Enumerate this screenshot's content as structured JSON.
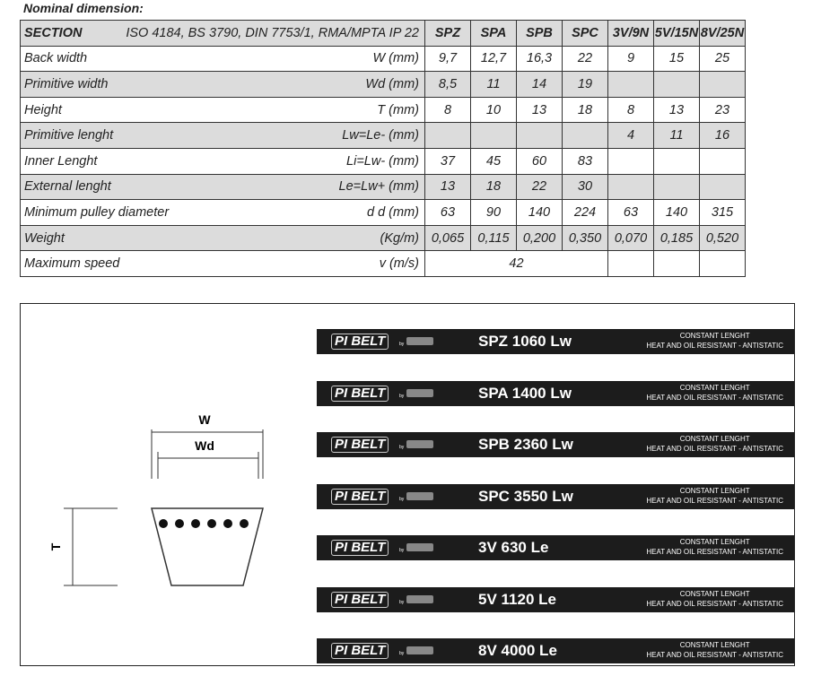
{
  "title": "Nominal dimension:",
  "table": {
    "header": {
      "label": "SECTION",
      "standard": "ISO 4184, BS 3790, DIN 7753/1, RMA/MPTA IP 22",
      "cols": [
        "SPZ",
        "SPA",
        "SPB",
        "SPC",
        "3V/9N",
        "5V/15N",
        "8V/25N"
      ]
    },
    "rows": [
      {
        "label": "Back width",
        "unit": "W (mm)",
        "values": [
          "9,7",
          "12,7",
          "16,3",
          "22",
          "9",
          "15",
          "25"
        ]
      },
      {
        "label": "Primitive width",
        "unit": "Wd (mm)",
        "values": [
          "8,5",
          "11",
          "14",
          "19",
          "",
          "",
          ""
        ]
      },
      {
        "label": "Height",
        "unit": "T (mm)",
        "values": [
          "8",
          "10",
          "13",
          "18",
          "8",
          "13",
          "23"
        ]
      },
      {
        "label": "Primitive lenght",
        "unit": "Lw=Le- (mm)",
        "values": [
          "",
          "",
          "",
          "",
          "4",
          "11",
          "16"
        ]
      },
      {
        "label": "Inner Lenght",
        "unit": "Li=Lw- (mm)",
        "values": [
          "37",
          "45",
          "60",
          "83",
          "",
          "",
          ""
        ]
      },
      {
        "label": "External lenght",
        "unit": "Le=Lw+ (mm)",
        "values": [
          "13",
          "18",
          "22",
          "30",
          "",
          "",
          ""
        ]
      },
      {
        "label": "Minimum pulley diameter",
        "unit": "d d (mm)",
        "values": [
          "63",
          "90",
          "140",
          "224",
          "63",
          "140",
          "315"
        ]
      },
      {
        "label": "Weight",
        "unit": "(Kg/m)",
        "values": [
          "0,065",
          "0,115",
          "0,200",
          "0,350",
          "0,070",
          "0,185",
          "0,520"
        ]
      }
    ],
    "speed": {
      "label": "Maximum speed",
      "unit": "v (m/s)",
      "value": "42"
    }
  },
  "diagram": {
    "w": "W",
    "wd": "Wd",
    "t": "T"
  },
  "belts": {
    "logo": "PI BELT",
    "by": "by",
    "note1": "CONSTANT LENGHT",
    "note2": "HEAT AND OIL RESISTANT -  ANTISTATIC",
    "codes": [
      "SPZ 1060 Lw",
      "SPA 1400 Lw",
      "SPB 2360 Lw",
      "SPC 3550 Lw",
      "3V 630 Le",
      "5V 1120 Le",
      "8V 4000 Le"
    ]
  }
}
